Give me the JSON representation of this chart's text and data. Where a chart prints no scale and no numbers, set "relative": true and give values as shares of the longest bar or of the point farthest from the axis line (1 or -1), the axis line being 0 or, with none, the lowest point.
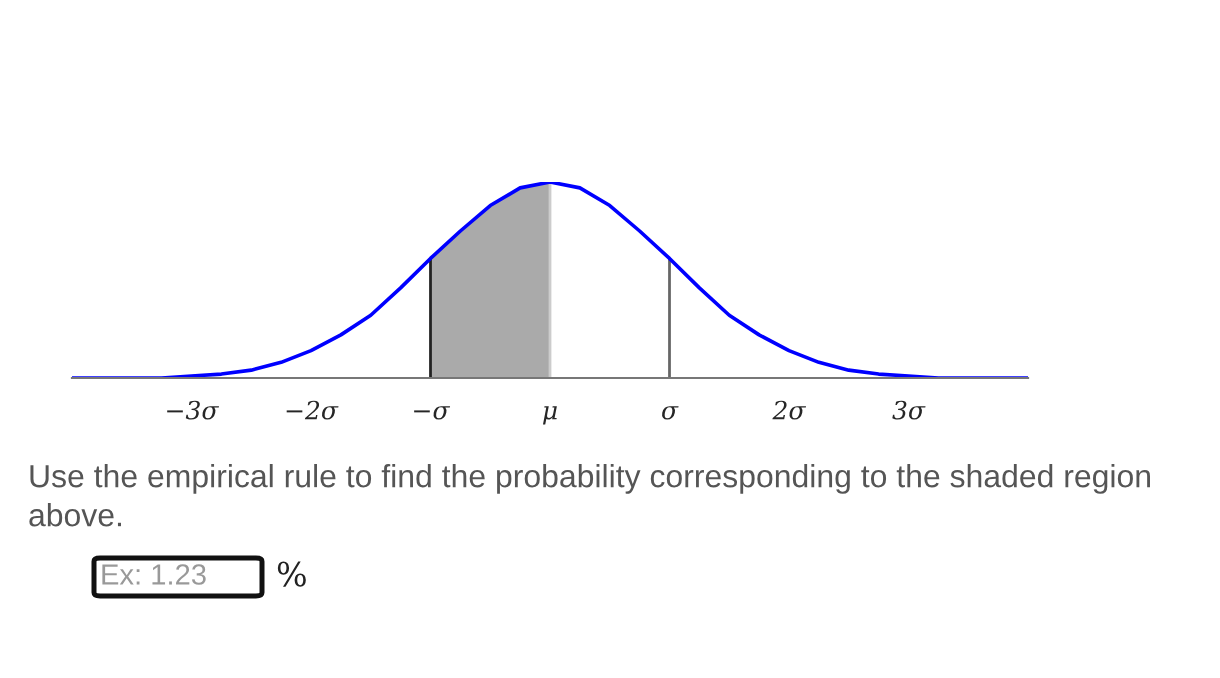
{
  "chart_data": {
    "type": "line",
    "relative": true,
    "x": [
      -4,
      -3.75,
      -3.5,
      -3.25,
      -3,
      -2.75,
      -2.5,
      -2.25,
      -2,
      -1.75,
      -1.5,
      -1.25,
      -1,
      -0.75,
      -0.5,
      -0.25,
      0,
      0.25,
      0.5,
      0.75,
      1,
      1.25,
      1.5,
      1.75,
      2,
      2.25,
      2.5,
      2.75,
      3,
      3.25,
      3.5,
      3.75,
      4
    ],
    "series": [
      {
        "color": "#0000ff",
        "values": [
          0,
          0,
          0,
          0,
          0.01,
          0.02,
          0.04,
          0.08,
          0.14,
          0.22,
          0.32,
          0.46,
          0.61,
          0.75,
          0.88,
          0.97,
          1,
          0.97,
          0.88,
          0.75,
          0.61,
          0.46,
          0.32,
          0.22,
          0.14,
          0.08,
          0.04,
          0.02,
          0.01,
          0,
          0,
          0,
          0
        ]
      }
    ],
    "xlim": [
      -4,
      4
    ],
    "xticks": [
      {
        "value": -3,
        "label": "−3σ"
      },
      {
        "value": -2,
        "label": "−2σ"
      },
      {
        "value": -1,
        "label": "−σ"
      },
      {
        "value": 0,
        "label": "μ"
      },
      {
        "value": 1,
        "label": "σ"
      },
      {
        "value": 2,
        "label": "2σ"
      },
      {
        "value": 3,
        "label": "3σ"
      }
    ],
    "bands": [
      {
        "axis": "x",
        "from": -1,
        "to": 0,
        "color": "#aaaaaa"
      }
    ],
    "ref_lines": [
      {
        "axis": "x",
        "value": -1,
        "color": "#222222"
      },
      {
        "axis": "x",
        "value": 1,
        "color": "#666666"
      }
    ],
    "legend": false,
    "marker": "none",
    "line_style": "solid",
    "annotations": [
      "Use the empirical rule to find the probability corresponding to the shaded region above.",
      "Ex: 1.23",
      "%"
    ]
  }
}
